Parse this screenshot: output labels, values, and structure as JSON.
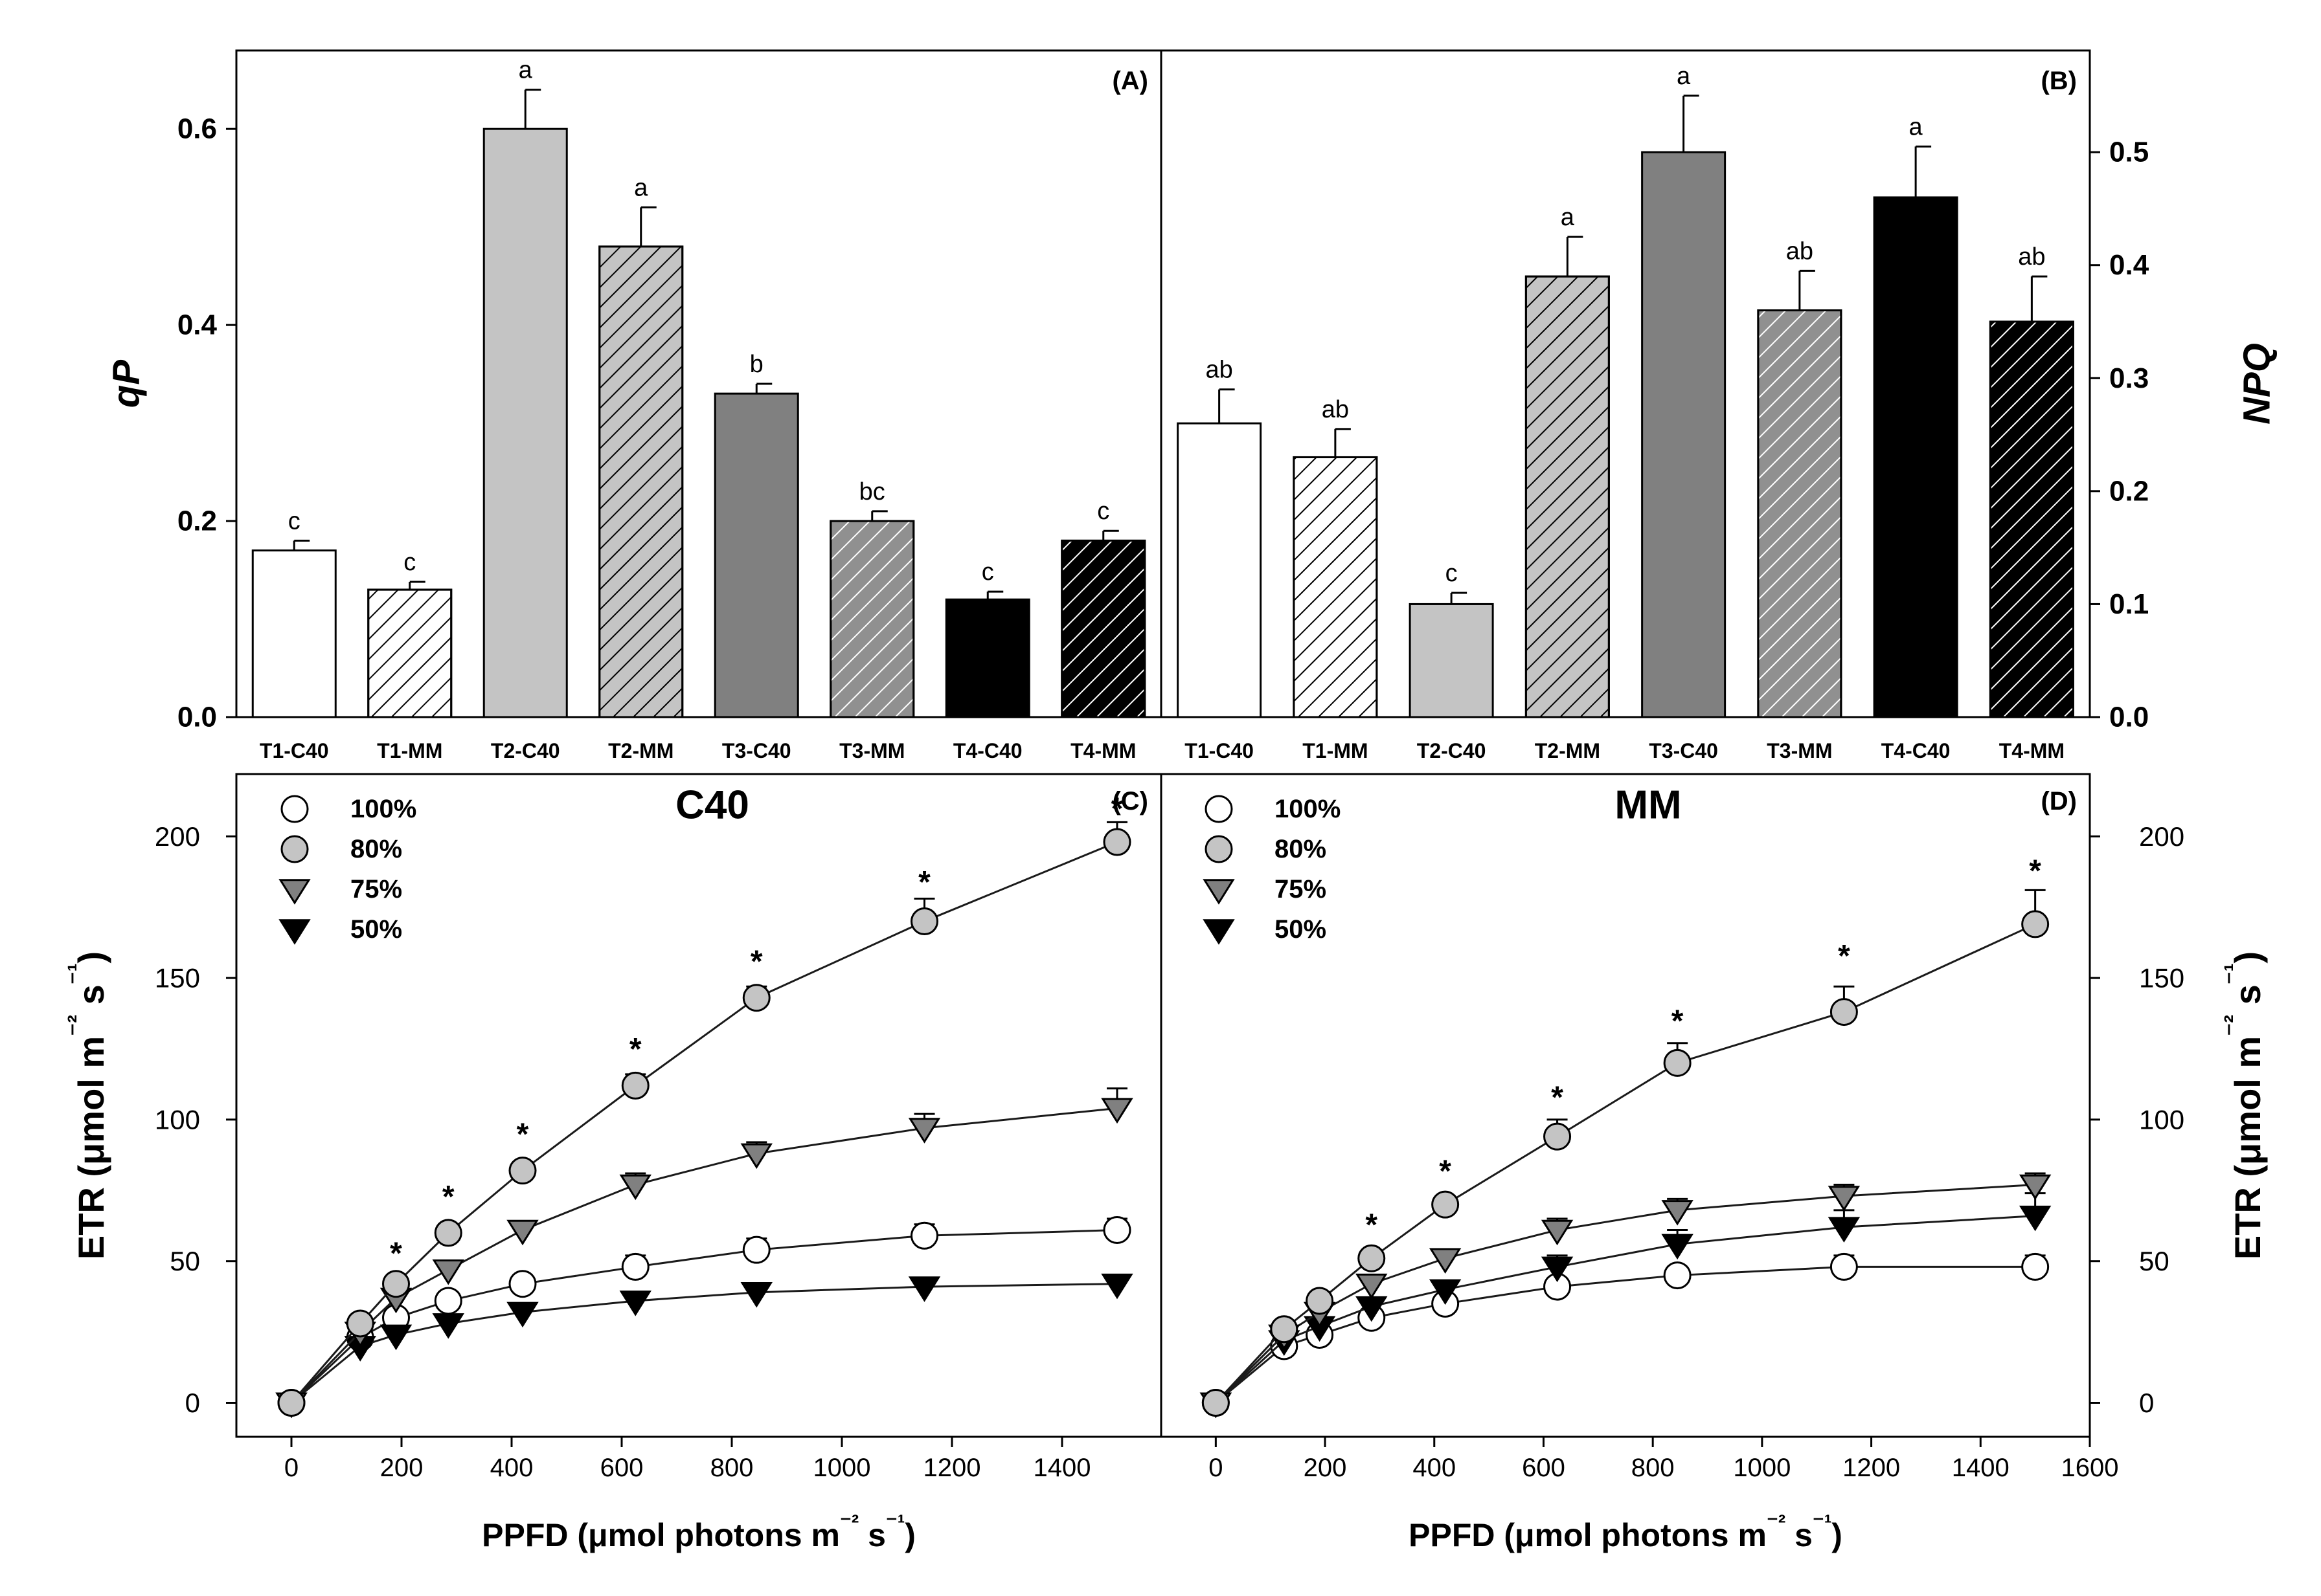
{
  "colors": {
    "axis": "#000000",
    "line": "#1a1a1a",
    "white": "#ffffff",
    "light_gray": "#c4c4c4",
    "mid_gray": "#808080",
    "dark_gray": "#909090",
    "black": "#000000"
  },
  "chart_data": [
    {
      "id": "A",
      "type": "bar",
      "panel_label": "(A)",
      "ylabel": "qP",
      "ylim": [
        0,
        0.68
      ],
      "ytick_values": [
        0,
        0.2,
        0.4,
        0.6
      ],
      "ytick_labels": [
        "0.0",
        "0.2",
        "0.4",
        "0.6"
      ],
      "categories": [
        "T1-C40",
        "T1-MM",
        "T2-C40",
        "T2-MM",
        "T3-C40",
        "T3-MM",
        "T4-C40",
        "T4-MM"
      ],
      "values": [
        0.17,
        0.13,
        0.6,
        0.48,
        0.33,
        0.2,
        0.12,
        0.18
      ],
      "errors": [
        0.01,
        0.008,
        0.04,
        0.04,
        0.01,
        0.01,
        0.008,
        0.01
      ],
      "letters": [
        "c",
        "c",
        "a",
        "a",
        "b",
        "bc",
        "c",
        "c"
      ],
      "fills": [
        "white",
        "white",
        "light_gray",
        "light_gray",
        "mid_gray",
        "dark_gray",
        "black",
        "black"
      ],
      "hatched": [
        false,
        true,
        false,
        true,
        false,
        true,
        false,
        true
      ]
    },
    {
      "id": "B",
      "type": "bar",
      "panel_label": "(B)",
      "ylabel": "NPQ",
      "ylim": [
        0,
        0.59
      ],
      "ytick_values": [
        0,
        0.1,
        0.2,
        0.3,
        0.4,
        0.5
      ],
      "ytick_labels": [
        "0.0",
        "0.1",
        "0.2",
        "0.3",
        "0.4",
        "0.5"
      ],
      "categories": [
        "T1-C40",
        "T1-MM",
        "T2-C40",
        "T2-MM",
        "T3-C40",
        "T3-MM",
        "T4-C40",
        "T4-MM"
      ],
      "values": [
        0.26,
        0.23,
        0.1,
        0.39,
        0.5,
        0.36,
        0.46,
        0.35
      ],
      "errors": [
        0.03,
        0.025,
        0.01,
        0.035,
        0.05,
        0.035,
        0.045,
        0.04
      ],
      "letters": [
        "ab",
        "ab",
        "c",
        "a",
        "a",
        "ab",
        "a",
        "ab"
      ],
      "fills": [
        "white",
        "white",
        "light_gray",
        "light_gray",
        "mid_gray",
        "dark_gray",
        "black",
        "black"
      ],
      "hatched": [
        false,
        true,
        false,
        true,
        false,
        true,
        false,
        true
      ]
    },
    {
      "id": "C",
      "type": "line",
      "panel_label": "(C)",
      "title": "C40",
      "xlabel": "PPFD (μmol photons m⁻² s⁻¹)",
      "ylabel": "ETR (μmol m⁻² s⁻¹)",
      "xlim": [
        -100,
        1580
      ],
      "ylim": [
        -12,
        222
      ],
      "xtick_values": [
        0,
        200,
        400,
        600,
        800,
        1000,
        1200,
        1400
      ],
      "xtick_labels": [
        "0",
        "200",
        "400",
        "600",
        "800",
        "1000",
        "1200",
        "1400"
      ],
      "ytick_values": [
        0,
        50,
        100,
        150,
        200
      ],
      "ytick_labels": [
        "0",
        "50",
        "100",
        "150",
        "200"
      ],
      "x": [
        0,
        125,
        190,
        285,
        420,
        625,
        845,
        1150,
        1500
      ],
      "series": [
        {
          "name": "100%",
          "marker": "circle",
          "fill": "white",
          "values": [
            0,
            23,
            30,
            36,
            42,
            48,
            54,
            59,
            61
          ],
          "errors": [
            0,
            2,
            2,
            3,
            3,
            4,
            4,
            4,
            4
          ]
        },
        {
          "name": "80%",
          "marker": "circle",
          "fill": "light_gray",
          "values": [
            0,
            28,
            42,
            60,
            82,
            112,
            143,
            170,
            198
          ],
          "errors": [
            0,
            2,
            2,
            3,
            3,
            4,
            4,
            8,
            7
          ]
        },
        {
          "name": "75%",
          "marker": "triangle-down",
          "fill": "mid_gray",
          "values": [
            0,
            25,
            37,
            47,
            61,
            77,
            88,
            97,
            104
          ],
          "errors": [
            0,
            2,
            2,
            3,
            3,
            4,
            4,
            5,
            7
          ]
        },
        {
          "name": "50%",
          "marker": "triangle-down",
          "fill": "black",
          "values": [
            0,
            20,
            24,
            28,
            32,
            36,
            39,
            41,
            42
          ],
          "errors": [
            0,
            1,
            1,
            2,
            2,
            2,
            2,
            2,
            2
          ]
        }
      ],
      "asterisk_x": [
        190,
        285,
        420,
        625,
        845,
        1150,
        1500
      ],
      "asterisk_y": [
        55,
        75,
        97,
        127,
        158,
        186,
        212
      ],
      "asterisk": "*"
    },
    {
      "id": "D",
      "type": "line",
      "panel_label": "(D)",
      "title": "MM",
      "xlabel": "PPFD (μmol photons m⁻² s⁻¹)",
      "ylabel": "ETR (μmol m⁻² s⁻¹)",
      "xlim": [
        -100,
        1600
      ],
      "ylim": [
        -12,
        222
      ],
      "xtick_values": [
        0,
        200,
        400,
        600,
        800,
        1000,
        1200,
        1400,
        1600
      ],
      "xtick_labels": [
        "0",
        "200",
        "400",
        "600",
        "800",
        "1000",
        "1200",
        "1400",
        "1600"
      ],
      "ytick_values": [
        0,
        50,
        100,
        150,
        200
      ],
      "ytick_labels": [
        "0",
        "50",
        "100",
        "150",
        "200"
      ],
      "x": [
        0,
        125,
        190,
        285,
        420,
        625,
        845,
        1150,
        1500
      ],
      "series": [
        {
          "name": "100%",
          "marker": "circle",
          "fill": "white",
          "values": [
            0,
            20,
            24,
            30,
            35,
            41,
            45,
            48,
            48
          ],
          "errors": [
            0,
            2,
            2,
            2,
            3,
            3,
            3,
            4,
            4
          ]
        },
        {
          "name": "80%",
          "marker": "circle",
          "fill": "light_gray",
          "values": [
            0,
            26,
            36,
            51,
            70,
            94,
            120,
            138,
            169
          ],
          "errors": [
            0,
            2,
            2,
            3,
            3,
            6,
            7,
            9,
            12
          ]
        },
        {
          "name": "75%",
          "marker": "triangle-down",
          "fill": "mid_gray",
          "values": [
            0,
            24,
            32,
            42,
            51,
            61,
            68,
            73,
            77
          ],
          "errors": [
            0,
            2,
            2,
            3,
            3,
            4,
            4,
            4,
            4
          ]
        },
        {
          "name": "50%",
          "marker": "triangle-down",
          "fill": "black",
          "values": [
            0,
            22,
            27,
            34,
            40,
            48,
            56,
            62,
            66
          ],
          "errors": [
            0,
            2,
            2,
            3,
            3,
            4,
            5,
            6,
            8
          ]
        }
      ],
      "asterisk_x": [
        285,
        420,
        625,
        845,
        1150,
        1500
      ],
      "asterisk_y": [
        65,
        84,
        110,
        137,
        160,
        190
      ],
      "asterisk": "*"
    }
  ]
}
